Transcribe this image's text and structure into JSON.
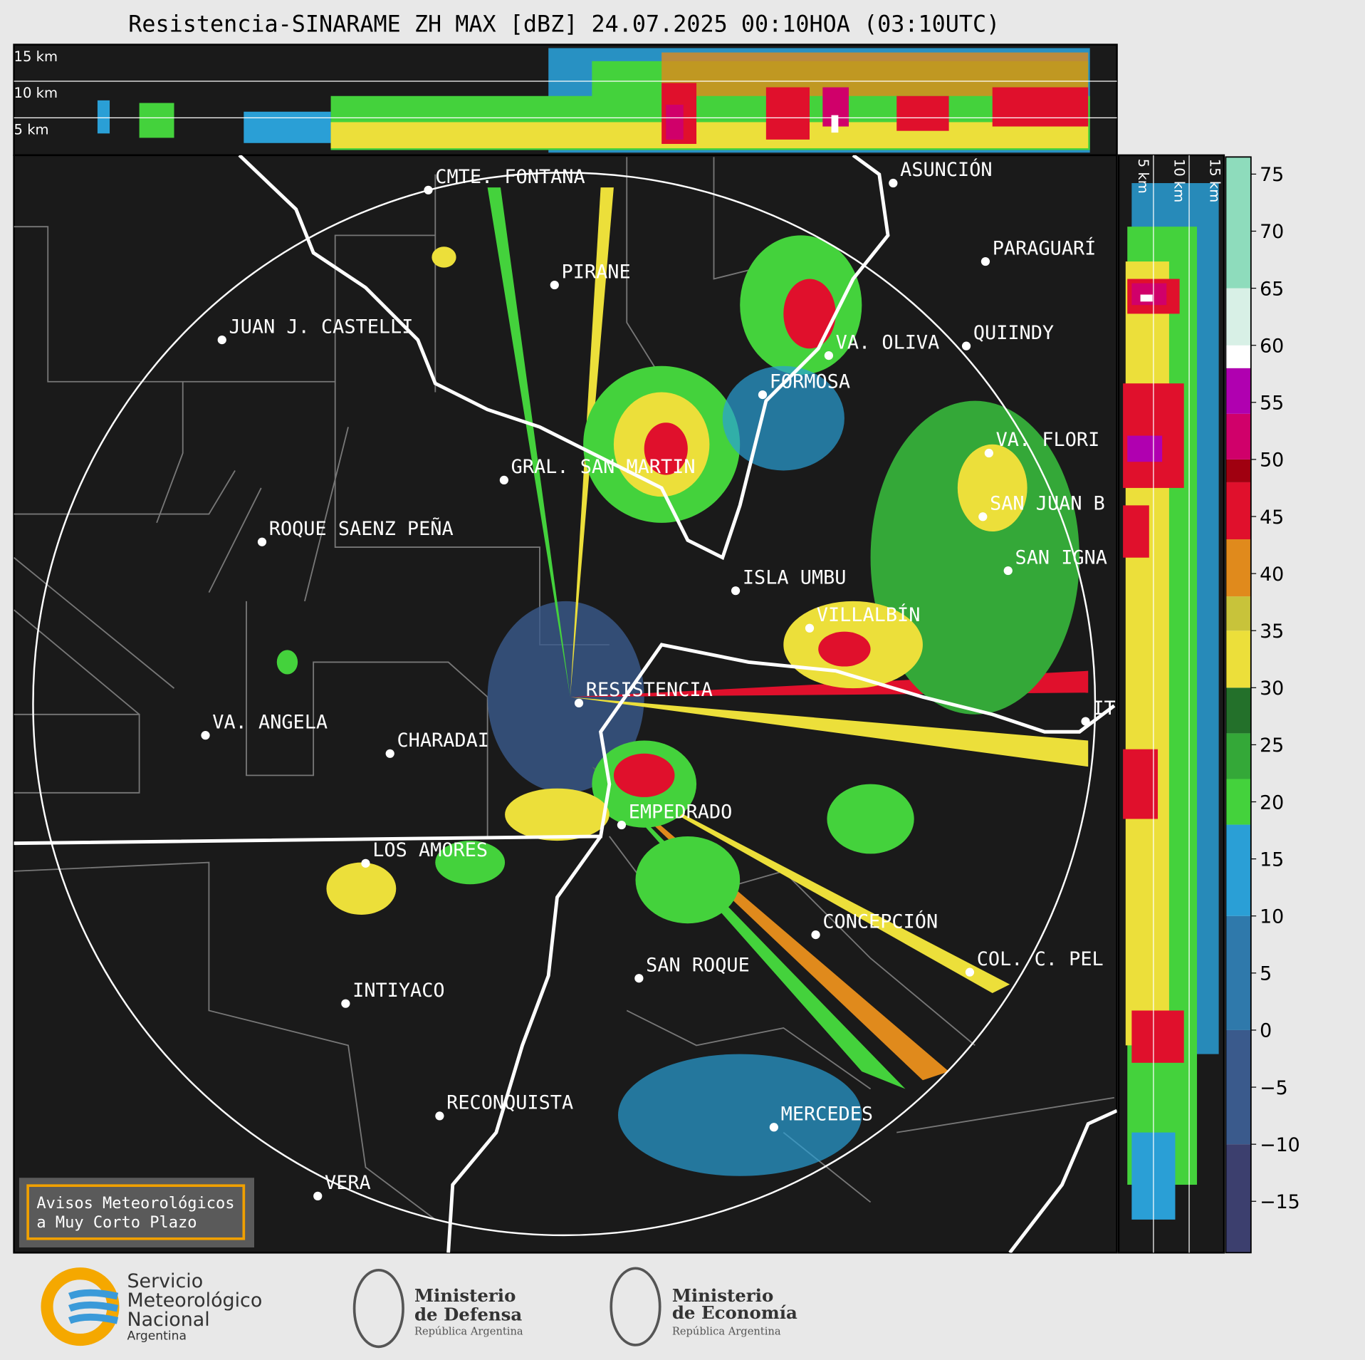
{
  "header": {
    "title": "Resistencia-SINARAME ZH MAX [dBZ] 24.07.2025 00:10HOA (03:10UTC)"
  },
  "height_labels_top": [
    "15 km",
    "10 km",
    "5 km"
  ],
  "height_labels_right": [
    "5 km",
    "10 km",
    "15 km"
  ],
  "cities": [
    {
      "name": "CMTE. FONTANA"
    },
    {
      "name": "PIRANE"
    },
    {
      "name": "JUAN J. CASTELLI"
    },
    {
      "name": "ASUNCIÓN"
    },
    {
      "name": "PARAGUARÍ"
    },
    {
      "name": "VA. OLIVA"
    },
    {
      "name": "QUIINDY"
    },
    {
      "name": "FORMOSA"
    },
    {
      "name": "VA. FLORI"
    },
    {
      "name": "GRAL. SAN MARTIN"
    },
    {
      "name": "SAN JUAN B"
    },
    {
      "name": "ROQUE SAENZ PEÑA"
    },
    {
      "name": "SAN IGNA"
    },
    {
      "name": "ISLA UMBU"
    },
    {
      "name": "VILLALBÍN"
    },
    {
      "name": "RESISTENCIA"
    },
    {
      "name": "IT"
    },
    {
      "name": "VA. ANGELA"
    },
    {
      "name": "CHARADAI"
    },
    {
      "name": "EMPEDRADO"
    },
    {
      "name": "LOS AMORES"
    },
    {
      "name": "CONCEPCIÓN"
    },
    {
      "name": "COL. C. PEL"
    },
    {
      "name": "SAN ROQUE"
    },
    {
      "name": "INTIYACO"
    },
    {
      "name": "RECONQUISTA"
    },
    {
      "name": "MERCEDES"
    },
    {
      "name": "VERA"
    }
  ],
  "colorbar": {
    "lim": [
      -19.5,
      76.5
    ],
    "ticks": [
      75,
      70,
      65,
      60,
      55,
      50,
      45,
      40,
      35,
      30,
      25,
      20,
      15,
      10,
      5,
      0,
      {
        "value": -5,
        "label": "−5"
      },
      {
        "value": -10,
        "label": "−10"
      },
      {
        "value": -15,
        "label": "−15"
      }
    ],
    "bands": [
      {
        "min": -19.5,
        "max": -10,
        "color": "#3c3f6e"
      },
      {
        "min": -10,
        "max": 0,
        "color": "#3a5a8c"
      },
      {
        "min": 0,
        "max": 10,
        "color": "#2f79ab"
      },
      {
        "min": 10,
        "max": 18,
        "color": "#2a9fd6"
      },
      {
        "min": 18,
        "max": 22,
        "color": "#44d23c"
      },
      {
        "min": 22,
        "max": 26,
        "color": "#34a838"
      },
      {
        "min": 26,
        "max": 30,
        "color": "#23702a"
      },
      {
        "min": 30,
        "max": 35,
        "color": "#ecdf3a"
      },
      {
        "min": 35,
        "max": 38,
        "color": "#c8c33a"
      },
      {
        "min": 38,
        "max": 43,
        "color": "#e08a1c"
      },
      {
        "min": 43,
        "max": 48,
        "color": "#e0102c"
      },
      {
        "min": 48,
        "max": 50,
        "color": "#a00010"
      },
      {
        "min": 50,
        "max": 54,
        "color": "#d0006a"
      },
      {
        "min": 54,
        "max": 58,
        "color": "#b000b0"
      },
      {
        "min": 58,
        "max": 60,
        "color": "#ffffff"
      },
      {
        "min": 60,
        "max": 65,
        "color": "#d8f0e6"
      },
      {
        "min": 65,
        "max": 76.5,
        "color": "#8edcbc"
      }
    ]
  },
  "warning_box": {
    "lines": [
      "Avisos Meteorológicos",
      "a Muy Corto Plazo"
    ]
  },
  "logos": {
    "smn": [
      "Servicio",
      "Meteorológico",
      "Nacional",
      "Argentina"
    ],
    "defensa": [
      "Ministerio",
      "de Defensa",
      "República Argentina"
    ],
    "economia": [
      "Ministerio",
      "de Economía",
      "República Argentina"
    ]
  }
}
